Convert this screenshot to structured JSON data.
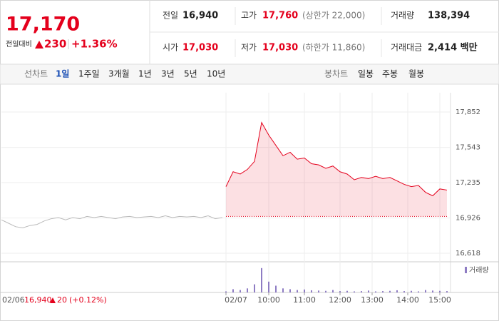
{
  "quote": {
    "price": "17,170",
    "change_label": "전일대비",
    "change": "230",
    "change_pct": "+1.36%"
  },
  "stats": [
    {
      "label": "전일",
      "value": "16,940",
      "color": "#222"
    },
    {
      "label": "고가",
      "value": "17,760",
      "color": "#e4001c",
      "note": "(상한가 22,000)"
    },
    {
      "label": "거래량",
      "value": "138,394",
      "color": "#222"
    },
    {
      "label": "시가",
      "value": "17,030",
      "color": "#e4001c"
    },
    {
      "label": "저가",
      "value": "17,030",
      "color": "#e4001c",
      "note": "(하한가 11,860)"
    },
    {
      "label": "거래대금",
      "value": "2,414 백만",
      "color": "#222"
    }
  ],
  "tabs": {
    "line_label": "선차트",
    "line": [
      "1일",
      "1주일",
      "3개월",
      "1년",
      "3년",
      "5년",
      "10년"
    ],
    "selected": 0,
    "candle_label": "봉차트",
    "candle": [
      "일봉",
      "주봉",
      "월봉"
    ]
  },
  "chart_data": {
    "type": "line",
    "ylim": [
      16556,
      17939
    ],
    "yticks": [
      {
        "value": 17852,
        "label": "17,852"
      },
      {
        "value": 17543,
        "label": "17,543"
      },
      {
        "value": 17235,
        "label": "17,235"
      },
      {
        "value": 16926,
        "label": "16,926"
      },
      {
        "value": 16618,
        "label": "16,618"
      }
    ],
    "xlim": [
      0,
      126
    ],
    "xticks": [
      {
        "value": 63,
        "label": "02/07"
      },
      {
        "value": 75,
        "label": "10:00"
      },
      {
        "value": 85,
        "label": "11:00"
      },
      {
        "value": 95,
        "label": "12:00"
      },
      {
        "value": 104,
        "label": "13:00"
      },
      {
        "value": 114,
        "label": "14:00"
      },
      {
        "value": 123,
        "label": "15:00"
      }
    ],
    "reference": 16940,
    "series": [
      {
        "color": "#bbbbbb",
        "x": [
          0,
          2,
          4,
          6,
          8,
          10,
          12,
          14,
          16,
          18,
          20,
          22,
          24,
          26,
          28,
          30,
          32,
          34,
          36,
          38,
          40,
          42,
          44,
          46,
          48,
          50,
          52,
          54,
          56,
          58,
          60,
          62
        ],
        "values": [
          16910,
          16880,
          16850,
          16840,
          16860,
          16870,
          16900,
          16920,
          16930,
          16910,
          16930,
          16920,
          16940,
          16930,
          16940,
          16930,
          16920,
          16935,
          16940,
          16930,
          16935,
          16940,
          16930,
          16945,
          16930,
          16940,
          16935,
          16940,
          16930,
          16945,
          16920,
          16930
        ]
      },
      {
        "color": "#e4001c",
        "x": [
          63,
          65,
          67,
          69,
          71,
          73,
          75,
          77,
          79,
          81,
          83,
          85,
          87,
          89,
          91,
          93,
          95,
          97,
          99,
          101,
          103,
          105,
          107,
          109,
          111,
          113,
          115,
          117,
          119,
          121,
          123,
          125
        ],
        "values": [
          17200,
          17330,
          17310,
          17350,
          17420,
          17760,
          17650,
          17560,
          17470,
          17500,
          17440,
          17450,
          17400,
          17390,
          17360,
          17380,
          17330,
          17310,
          17260,
          17280,
          17270,
          17290,
          17270,
          17280,
          17250,
          17220,
          17200,
          17210,
          17150,
          17120,
          17180,
          17170
        ]
      }
    ],
    "volume": {
      "name": "거래량",
      "color": "#8e7cc3",
      "vlim": [
        0,
        10000
      ],
      "values": [
        400,
        1200,
        900,
        1500,
        3000,
        9000,
        4000,
        2500,
        1500,
        1200,
        900,
        1100,
        800,
        700,
        600,
        900,
        500,
        600,
        400,
        500,
        700,
        400,
        500,
        600,
        800,
        500,
        600,
        400,
        900,
        700,
        600,
        500
      ]
    },
    "prev_day": {
      "date": "02/06",
      "close": "16,940",
      "change": "20",
      "pct": "(+0.12%)"
    }
  }
}
